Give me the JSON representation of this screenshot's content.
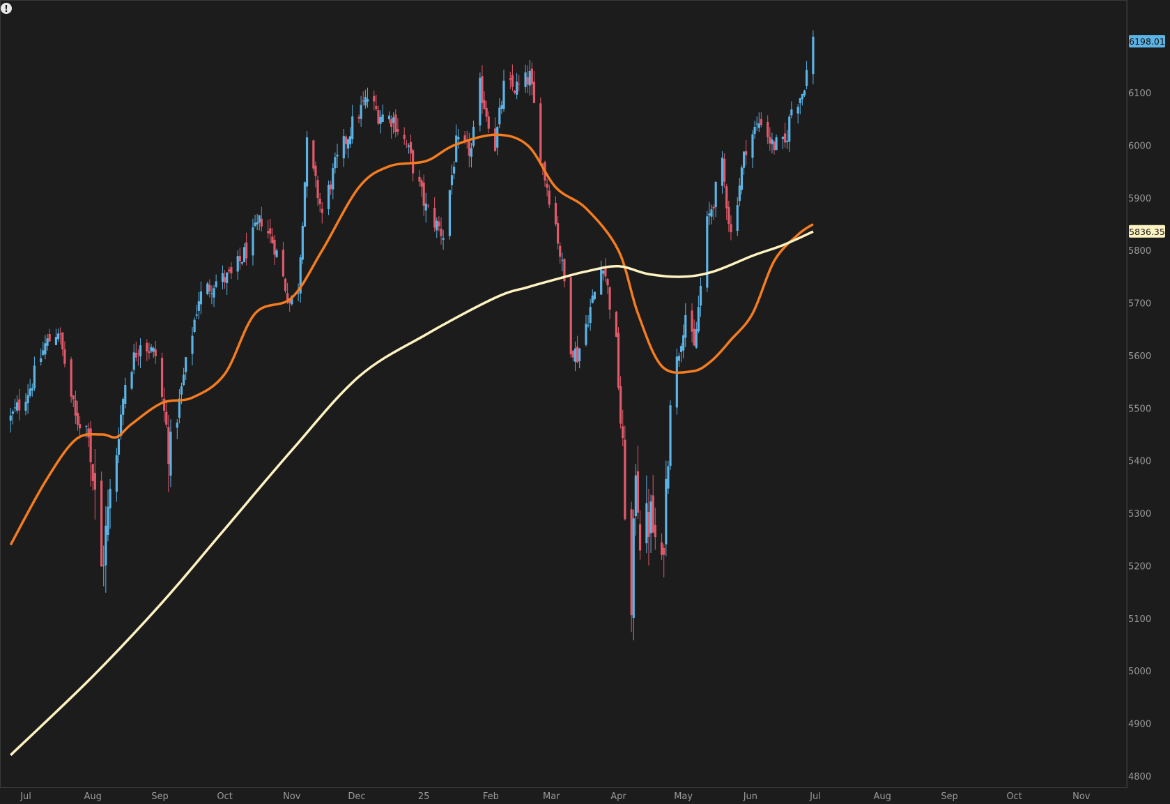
{
  "alert_glyph": "!",
  "colors": {
    "background": "#1c1c1c",
    "panel_border": "#3a3a3a",
    "up": "#5cb3e6",
    "down": "#e05a6a",
    "ma_fast": "#f57c20",
    "ma_slow": "#fff3c2",
    "axis_text": "#9a9a9a",
    "last_price_bg": "#5cb3e6",
    "ma_slow_label_bg": "#fff3c2"
  },
  "chart_data": {
    "type": "candlestick",
    "grid": false,
    "x_range": [
      "2024-07-01",
      "2025-11-30"
    ],
    "ylim": [
      4780,
      6240
    ],
    "y_ticks": [
      4800,
      4900,
      5000,
      5100,
      5200,
      5300,
      5400,
      5500,
      5600,
      5700,
      5800,
      5900,
      6000,
      6100
    ],
    "x_ticks": [
      {
        "label": "Jul",
        "date": "2024-07-01"
      },
      {
        "label": "Aug",
        "date": "2024-08-01"
      },
      {
        "label": "Sep",
        "date": "2024-09-01"
      },
      {
        "label": "Oct",
        "date": "2024-10-01"
      },
      {
        "label": "Nov",
        "date": "2024-11-01"
      },
      {
        "label": "Dec",
        "date": "2024-12-01"
      },
      {
        "label": "25",
        "date": "2025-01-01"
      },
      {
        "label": "Feb",
        "date": "2025-02-01"
      },
      {
        "label": "Mar",
        "date": "2025-03-01"
      },
      {
        "label": "Apr",
        "date": "2025-04-01"
      },
      {
        "label": "May",
        "date": "2025-05-01"
      },
      {
        "label": "Jun",
        "date": "2025-06-01"
      },
      {
        "label": "Jul",
        "date": "2025-07-01"
      },
      {
        "label": "Aug",
        "date": "2025-08-01"
      },
      {
        "label": "Sep",
        "date": "2025-09-01"
      },
      {
        "label": "Oct",
        "date": "2025-10-01"
      },
      {
        "label": "Nov",
        "date": "2025-11-01"
      }
    ],
    "price_path": {
      "dates": [
        "2024-06-24",
        "2024-07-03",
        "2024-07-10",
        "2024-07-16",
        "2024-07-24",
        "2024-07-30",
        "2024-08-05",
        "2024-08-09",
        "2024-08-16",
        "2024-08-23",
        "2024-08-30",
        "2024-09-06",
        "2024-09-12",
        "2024-09-19",
        "2024-09-26",
        "2024-10-04",
        "2024-10-11",
        "2024-10-18",
        "2024-10-24",
        "2024-10-31",
        "2024-11-04",
        "2024-11-08",
        "2024-11-15",
        "2024-11-21",
        "2024-11-29",
        "2024-12-06",
        "2024-12-11",
        "2024-12-18",
        "2024-12-24",
        "2025-01-02",
        "2025-01-10",
        "2025-01-16",
        "2025-01-23",
        "2025-01-27",
        "2025-02-03",
        "2025-02-07",
        "2025-02-14",
        "2025-02-19",
        "2025-02-25",
        "2025-03-03",
        "2025-03-07",
        "2025-03-10",
        "2025-03-13",
        "2025-03-19",
        "2025-03-25",
        "2025-03-31",
        "2025-04-03",
        "2025-04-07",
        "2025-04-09",
        "2025-04-11",
        "2025-04-16",
        "2025-04-21",
        "2025-04-25",
        "2025-05-02",
        "2025-05-06",
        "2025-05-12",
        "2025-05-19",
        "2025-05-23",
        "2025-05-30",
        "2025-06-06",
        "2025-06-11",
        "2025-06-17",
        "2025-06-20",
        "2025-06-25",
        "2025-06-30"
      ],
      "closes": [
        5480,
        5540,
        5620,
        5650,
        5480,
        5460,
        5190,
        5330,
        5550,
        5630,
        5600,
        5410,
        5560,
        5710,
        5740,
        5750,
        5800,
        5860,
        5810,
        5700,
        5730,
        6000,
        5870,
        5960,
        6040,
        6090,
        6060,
        6050,
        6000,
        5880,
        5830,
        6000,
        5990,
        6110,
        6000,
        6110,
        6110,
        6130,
        5960,
        5850,
        5740,
        5620,
        5600,
        5690,
        5780,
        5620,
        5400,
        5090,
        5400,
        5260,
        5290,
        5180,
        5520,
        5680,
        5610,
        5850,
        5960,
        5830,
        6000,
        6050,
        6000,
        6000,
        6070,
        6100,
        6200
      ]
    },
    "series": [
      {
        "name": "",
        "style": "line",
        "dates": [
          "2024-06-24",
          "2024-07-10",
          "2024-07-24",
          "2024-08-05",
          "2024-08-12",
          "2024-08-19",
          "2024-09-02",
          "2024-09-16",
          "2024-10-01",
          "2024-10-15",
          "2024-11-01",
          "2024-11-15",
          "2024-12-02",
          "2024-12-16",
          "2025-01-02",
          "2025-01-15",
          "2025-02-03",
          "2025-02-18",
          "2025-03-03",
          "2025-03-17",
          "2025-04-01",
          "2025-04-10",
          "2025-04-21",
          "2025-05-05",
          "2025-05-14",
          "2025-05-23",
          "2025-06-02",
          "2025-06-12",
          "2025-06-23",
          "2025-06-30"
        ],
        "values": [
          5240,
          5360,
          5440,
          5450,
          5445,
          5470,
          5510,
          5520,
          5565,
          5680,
          5710,
          5800,
          5920,
          5960,
          5970,
          6000,
          6020,
          6000,
          5920,
          5880,
          5800,
          5680,
          5580,
          5570,
          5590,
          5630,
          5680,
          5780,
          5830,
          5850
        ]
      },
      {
        "name": "",
        "style": "line",
        "dates": [
          "2024-06-24",
          "2024-08-01",
          "2024-09-02",
          "2024-10-01",
          "2024-11-01",
          "2024-12-02",
          "2025-01-02",
          "2025-02-03",
          "2025-02-18",
          "2025-03-03",
          "2025-03-17",
          "2025-04-01",
          "2025-04-15",
          "2025-05-01",
          "2025-05-15",
          "2025-06-02",
          "2025-06-16",
          "2025-06-30"
        ],
        "values": [
          4840,
          4990,
          5130,
          5270,
          5420,
          5560,
          5640,
          5710,
          5730,
          5745,
          5760,
          5770,
          5755,
          5750,
          5760,
          5790,
          5810,
          5836
        ]
      }
    ],
    "price_labels": [
      {
        "text": "6198.01",
        "value": 6198.01
      },
      {
        "text": "5836.35",
        "value": 5836.35
      }
    ]
  }
}
